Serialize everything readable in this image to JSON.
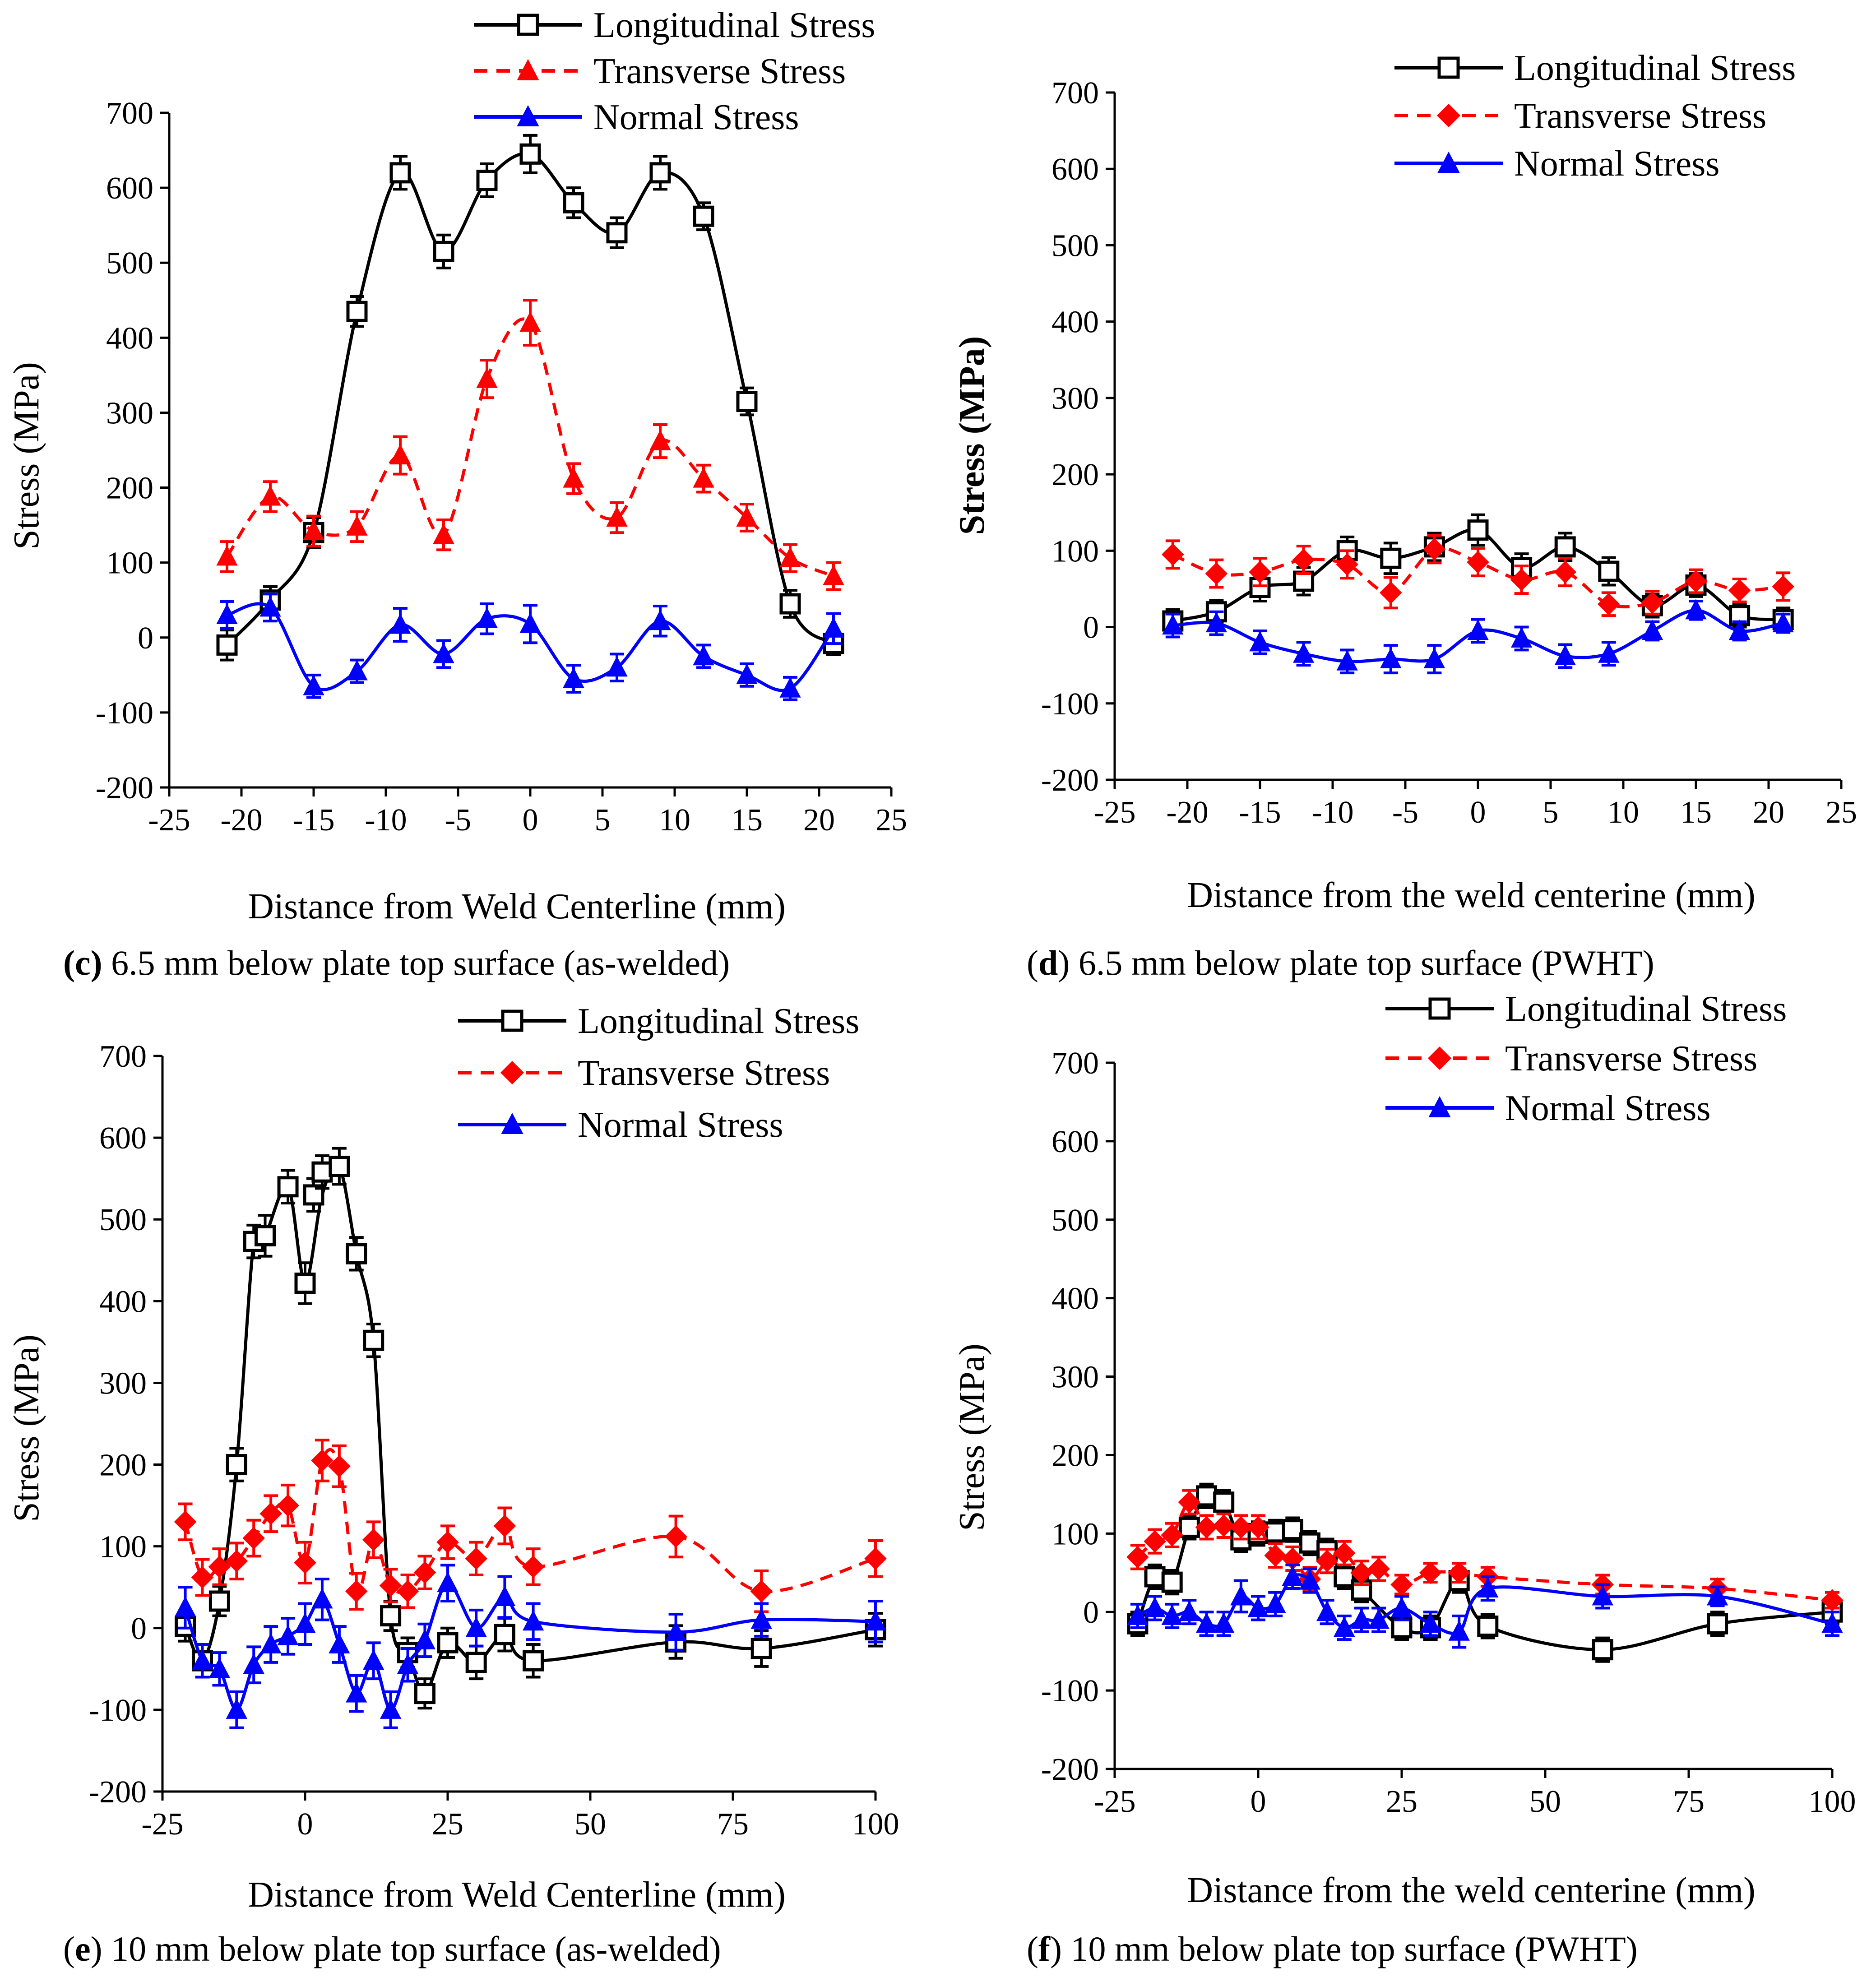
{
  "figure": {
    "panels": [
      {
        "id": "c",
        "caption_letter": "c",
        "caption_text": " 6.5 mm below plate top surface (as-welded)"
      },
      {
        "id": "d",
        "caption_letter": "d",
        "caption_text": " 6.5 mm below plate top surface (PWHT)"
      },
      {
        "id": "e",
        "caption_letter": "e",
        "caption_text": " 10 mm below plate top surface (as-welded)"
      },
      {
        "id": "f",
        "caption_letter": "f",
        "caption_text": " 10 mm below plate top surface (PWHT)"
      }
    ]
  },
  "colors": {
    "longitudinal": "#000000",
    "transverse": "#ff0000",
    "normal": "#0000ff",
    "axis": "#000000"
  },
  "chart_data": [
    {
      "id": "c",
      "type": "line",
      "caption": "(c) 6.5 mm below plate top surface (as-welded)",
      "xlabel": "Distance from Weld Centerline (mm)",
      "ylabel": "Stress (MPa)",
      "xlim": [
        -25,
        25
      ],
      "ylim": [
        -200,
        700
      ],
      "xticks": [
        -25,
        -20,
        -15,
        -10,
        -5,
        0,
        5,
        10,
        15,
        20,
        25
      ],
      "xtick_labels": [
        "-25",
        "-20",
        "-15",
        "-10",
        "-5",
        "0",
        "5",
        "10",
        "15",
        "20",
        "25"
      ],
      "yticks": [
        -200,
        -100,
        0,
        100,
        200,
        300,
        400,
        500,
        600,
        700
      ],
      "ytick_labels": [
        "-200",
        "-100",
        "0",
        "100",
        "200",
        "300",
        "400",
        "500",
        "600",
        "700"
      ],
      "legend_position": "top-center",
      "series": [
        {
          "name": "Longitudinal Stress",
          "color_key": "longitudinal",
          "marker": "open-square",
          "dash": "solid",
          "x": [
            -21,
            -18,
            -15,
            -12,
            -9,
            -6,
            -3,
            0,
            3,
            6,
            9,
            12,
            15,
            18,
            21
          ],
          "values": [
            -10,
            50,
            140,
            435,
            620,
            515,
            610,
            645,
            580,
            540,
            620,
            562,
            315,
            45,
            -8
          ],
          "err": [
            20,
            18,
            20,
            20,
            22,
            22,
            22,
            25,
            20,
            20,
            22,
            18,
            18,
            18,
            15
          ]
        },
        {
          "name": "Transverse Stress",
          "color_key": "transverse",
          "marker": "filled-triangle",
          "dash": "dashed",
          "x": [
            -21,
            -18,
            -15,
            -12,
            -9,
            -6,
            -3,
            0,
            3,
            6,
            9,
            12,
            15,
            18,
            21
          ],
          "values": [
            108,
            188,
            142,
            148,
            243,
            137,
            345,
            420,
            212,
            160,
            262,
            212,
            160,
            106,
            82
          ],
          "err": [
            20,
            20,
            20,
            20,
            25,
            20,
            25,
            30,
            20,
            20,
            22,
            18,
            18,
            18,
            18
          ]
        },
        {
          "name": "Normal Stress",
          "color_key": "normal",
          "marker": "filled-triangle",
          "dash": "solid",
          "x": [
            -21,
            -18,
            -15,
            -12,
            -9,
            -6,
            -3,
            0,
            3,
            6,
            9,
            12,
            15,
            18,
            21
          ],
          "values": [
            30,
            40,
            -65,
            -45,
            17,
            -22,
            25,
            18,
            -55,
            -40,
            22,
            -25,
            -50,
            -68,
            12
          ],
          "err": [
            18,
            18,
            15,
            15,
            22,
            18,
            20,
            25,
            18,
            18,
            20,
            15,
            15,
            15,
            20
          ]
        }
      ]
    },
    {
      "id": "d",
      "type": "line",
      "caption": "(d) 6.5 mm below plate top surface (PWHT)",
      "xlabel": "Distance from the weld centerine (mm)",
      "ylabel": "Stress (MPa)",
      "xlim": [
        -25,
        25
      ],
      "ylim": [
        -200,
        700
      ],
      "xticks": [
        -25,
        -20,
        -15,
        -10,
        -5,
        0,
        5,
        10,
        15,
        20,
        25
      ],
      "xtick_labels": [
        "-25",
        "-20",
        "-15",
        "-10",
        "-5",
        "0",
        "5",
        "10",
        "15",
        "20",
        "25"
      ],
      "yticks": [
        -200,
        -100,
        0,
        100,
        200,
        300,
        400,
        500,
        600,
        700
      ],
      "ytick_labels": [
        "-200",
        "-100",
        "0",
        "100",
        "200",
        "300",
        "400",
        "500",
        "600",
        "700"
      ],
      "legend_position": "top-right",
      "series": [
        {
          "name": "Longitudinal Stress",
          "color_key": "longitudinal",
          "marker": "open-square",
          "dash": "solid",
          "x": [
            -21,
            -18,
            -15,
            -12,
            -9,
            -6,
            -3,
            0,
            3,
            6,
            9,
            12,
            15,
            18,
            21
          ],
          "values": [
            8,
            20,
            52,
            60,
            100,
            90,
            105,
            127,
            78,
            105,
            73,
            28,
            55,
            15,
            10
          ],
          "err": [
            15,
            15,
            18,
            18,
            18,
            20,
            18,
            20,
            18,
            18,
            18,
            15,
            15,
            15,
            15
          ]
        },
        {
          "name": "Transverse Stress",
          "color_key": "transverse",
          "marker": "filled-diamond",
          "dash": "dashed",
          "x": [
            -21,
            -18,
            -15,
            -12,
            -9,
            -6,
            -3,
            0,
            3,
            6,
            9,
            12,
            15,
            18,
            21
          ],
          "values": [
            95,
            70,
            72,
            88,
            82,
            45,
            102,
            85,
            62,
            72,
            30,
            32,
            60,
            48,
            53
          ],
          "err": [
            18,
            18,
            18,
            18,
            18,
            20,
            18,
            18,
            18,
            18,
            15,
            15,
            15,
            15,
            18
          ]
        },
        {
          "name": "Normal Stress",
          "color_key": "normal",
          "marker": "filled-triangle",
          "dash": "solid",
          "x": [
            -21,
            -18,
            -15,
            -12,
            -9,
            -6,
            -3,
            0,
            3,
            6,
            9,
            12,
            15,
            18,
            21
          ],
          "values": [
            2,
            5,
            -20,
            -35,
            -45,
            -42,
            -42,
            -5,
            -15,
            -38,
            -35,
            -5,
            22,
            -5,
            5
          ],
          "err": [
            15,
            15,
            15,
            15,
            15,
            18,
            18,
            15,
            15,
            15,
            15,
            12,
            12,
            12,
            12
          ]
        }
      ]
    },
    {
      "id": "e",
      "type": "line",
      "caption": "(e) 10 mm below plate top surface (as-welded)",
      "xlabel": "Distance from Weld Centerline (mm)",
      "ylabel": "Stress (MPa)",
      "xlim": [
        -25,
        100
      ],
      "ylim": [
        -200,
        700
      ],
      "xticks": [
        -25,
        0,
        25,
        50,
        75,
        100
      ],
      "xtick_labels": [
        "-25",
        "0",
        "25",
        "50",
        "75",
        "100"
      ],
      "yticks": [
        -200,
        -100,
        0,
        100,
        200,
        300,
        400,
        500,
        600,
        700
      ],
      "ytick_labels": [
        "-200",
        "-100",
        "0",
        "100",
        "200",
        "300",
        "400",
        "500",
        "600",
        "700"
      ],
      "legend_position": "top-center",
      "series": [
        {
          "name": "Longitudinal Stress",
          "color_key": "longitudinal",
          "marker": "open-square",
          "dash": "solid",
          "x": [
            -21,
            -18,
            -15,
            -12,
            -9,
            -7,
            -3,
            0,
            1.5,
            3,
            6,
            9,
            12,
            15,
            18,
            21,
            25,
            30,
            35,
            40,
            65,
            80,
            100
          ],
          "values": [
            2,
            -40,
            33,
            200,
            473,
            480,
            540,
            422,
            530,
            558,
            565,
            458,
            352,
            15,
            -30,
            -80,
            -18,
            -42,
            -8,
            -40,
            -17,
            -25,
            -2
          ],
          "err": [
            18,
            20,
            18,
            20,
            20,
            25,
            20,
            25,
            20,
            20,
            22,
            20,
            20,
            18,
            18,
            18,
            18,
            20,
            20,
            20,
            20,
            22,
            20
          ],
          "line_x": [
            -21,
            -18,
            -15,
            -12,
            -9,
            -7,
            -3,
            0,
            3,
            6,
            9,
            12,
            15,
            18,
            21,
            25,
            30,
            35,
            40,
            65,
            80,
            100
          ],
          "line_values": [
            2,
            -40,
            33,
            200,
            473,
            480,
            540,
            422,
            530,
            565,
            458,
            352,
            15,
            -30,
            -80,
            -18,
            -42,
            -8,
            -40,
            -17,
            -25,
            -2
          ]
        },
        {
          "name": "Transverse Stress",
          "color_key": "transverse",
          "marker": "filled-diamond",
          "dash": "dashed",
          "x": [
            -21,
            -18,
            -15,
            -12,
            -9,
            -6,
            -3,
            0,
            3,
            6,
            9,
            12,
            15,
            18,
            21,
            25,
            30,
            35,
            40,
            65,
            80,
            100
          ],
          "values": [
            130,
            62,
            75,
            82,
            110,
            140,
            150,
            80,
            205,
            198,
            45,
            108,
            52,
            45,
            68,
            105,
            85,
            125,
            75,
            112,
            45,
            85
          ],
          "err": [
            22,
            22,
            22,
            22,
            22,
            22,
            25,
            25,
            25,
            25,
            22,
            22,
            20,
            20,
            20,
            20,
            20,
            22,
            22,
            25,
            25,
            22
          ]
        },
        {
          "name": "Normal Stress",
          "color_key": "normal",
          "marker": "filled-triangle",
          "dash": "solid",
          "x": [
            -21,
            -18,
            -15,
            -12,
            -9,
            -6,
            -3,
            0,
            3,
            6,
            9,
            12,
            15,
            18,
            21,
            25,
            30,
            35,
            40,
            65,
            80,
            100
          ],
          "values": [
            25,
            -40,
            -50,
            -100,
            -45,
            -20,
            -10,
            5,
            35,
            -20,
            -80,
            -40,
            -100,
            -45,
            -15,
            55,
            0,
            38,
            8,
            -5,
            10,
            8
          ],
          "err": [
            25,
            20,
            20,
            22,
            22,
            22,
            22,
            25,
            25,
            22,
            22,
            22,
            22,
            20,
            20,
            22,
            22,
            25,
            22,
            22,
            20,
            25
          ]
        }
      ]
    },
    {
      "id": "f",
      "type": "line",
      "caption": "(f) 10 mm below plate top surface (PWHT)",
      "xlabel": "Distance from the weld centerine (mm)",
      "ylabel": "Stress (MPa)",
      "xlim": [
        -25,
        100
      ],
      "ylim": [
        -200,
        700
      ],
      "xticks": [
        -25,
        0,
        25,
        50,
        75,
        100
      ],
      "xtick_labels": [
        "-25",
        "0",
        "25",
        "50",
        "75",
        "100"
      ],
      "yticks": [
        -200,
        -100,
        0,
        100,
        200,
        300,
        400,
        500,
        600,
        700
      ],
      "ytick_labels": [
        "-200",
        "-100",
        "0",
        "100",
        "200",
        "300",
        "400",
        "500",
        "600",
        "700"
      ],
      "legend_position": "top-center",
      "series": [
        {
          "name": "Longitudinal Stress",
          "color_key": "longitudinal",
          "marker": "open-square",
          "dash": "solid",
          "x": [
            -21,
            -18,
            -15,
            -12,
            -9,
            -6,
            -3,
            0,
            3,
            6,
            9,
            12,
            15,
            18,
            25,
            30,
            35,
            40,
            60,
            80,
            100
          ],
          "values": [
            -15,
            45,
            38,
            108,
            148,
            140,
            92,
            100,
            102,
            105,
            88,
            78,
            45,
            28,
            -20,
            -20,
            40,
            -18,
            -48,
            -15,
            0
          ],
          "err": [
            15,
            15,
            15,
            15,
            15,
            15,
            15,
            15,
            15,
            15,
            15,
            15,
            15,
            15,
            15,
            15,
            15,
            15,
            15,
            15,
            15
          ]
        },
        {
          "name": "Transverse Stress",
          "color_key": "transverse",
          "marker": "filled-diamond",
          "dash": "dashed",
          "x": [
            -21,
            -18,
            -15,
            -12,
            -9,
            -6,
            -3,
            0,
            3,
            6,
            9,
            12,
            15,
            18,
            21,
            25,
            30,
            35,
            40,
            60,
            80,
            100
          ],
          "values": [
            70,
            90,
            98,
            140,
            108,
            110,
            108,
            108,
            72,
            68,
            42,
            65,
            75,
            50,
            55,
            35,
            50,
            50,
            45,
            35,
            30,
            15
          ],
          "err": [
            15,
            15,
            15,
            15,
            15,
            15,
            15,
            15,
            15,
            15,
            15,
            15,
            15,
            15,
            15,
            12,
            12,
            12,
            12,
            12,
            12,
            10
          ]
        },
        {
          "name": "Normal Stress",
          "color_key": "normal",
          "marker": "filled-triangle",
          "dash": "solid",
          "x": [
            -21,
            -18,
            -15,
            -12,
            -9,
            -6,
            -3,
            0,
            3,
            6,
            9,
            12,
            15,
            18,
            21,
            25,
            30,
            35,
            40,
            60,
            80,
            100
          ],
          "values": [
            -5,
            5,
            -5,
            0,
            -15,
            -15,
            20,
            5,
            10,
            45,
            40,
            0,
            -20,
            -10,
            -10,
            5,
            -15,
            -25,
            30,
            20,
            20,
            -15
          ],
          "err": [
            15,
            15,
            15,
            15,
            15,
            15,
            20,
            15,
            15,
            15,
            15,
            15,
            15,
            15,
            15,
            15,
            15,
            20,
            15,
            15,
            12,
            15
          ]
        }
      ]
    }
  ]
}
